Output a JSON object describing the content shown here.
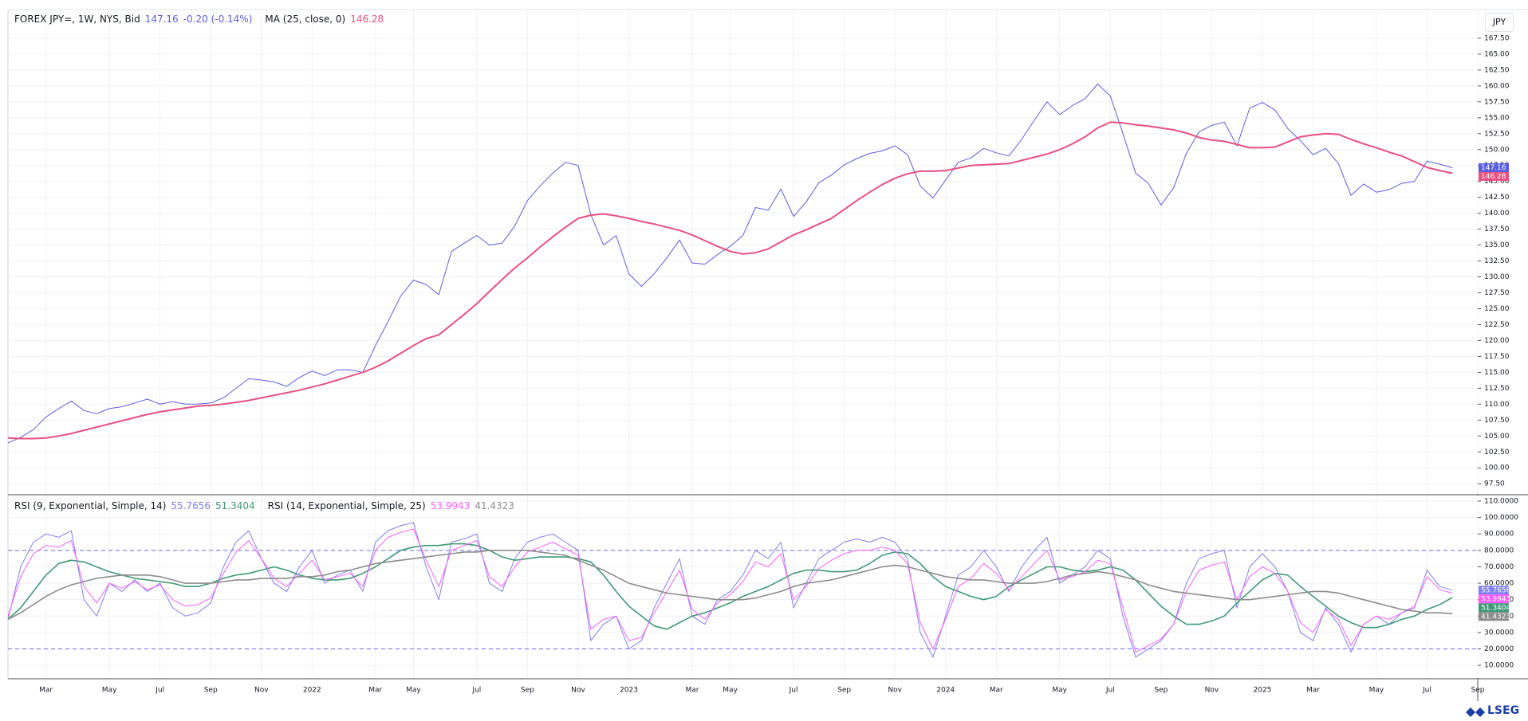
{
  "chart_data": [
    {
      "type": "line",
      "currency": "JPY",
      "change": "-0.20 (-0.14%)",
      "grid": true,
      "ylim": [
        95.9,
        172.0
      ],
      "yticks": [
        {
          "value": 97.5,
          "label": "97.50"
        },
        {
          "value": 100,
          "label": "100.00"
        },
        {
          "value": 102.5,
          "label": "102.50"
        },
        {
          "value": 105,
          "label": "105.00"
        },
        {
          "value": 107.5,
          "label": "107.50"
        },
        {
          "value": 110,
          "label": "110.00"
        },
        {
          "value": 112.5,
          "label": "112.50"
        },
        {
          "value": 115,
          "label": "115.00"
        },
        {
          "value": 117.5,
          "label": "117.50"
        },
        {
          "value": 120,
          "label": "120.00"
        },
        {
          "value": 122.5,
          "label": "122.50"
        },
        {
          "value": 125,
          "label": "125.00"
        },
        {
          "value": 127.5,
          "label": "127.50"
        },
        {
          "value": 130,
          "label": "130.00"
        },
        {
          "value": 132.5,
          "label": "132.50"
        },
        {
          "value": 135,
          "label": "135.00"
        },
        {
          "value": 137.5,
          "label": "137.50"
        },
        {
          "value": 140,
          "label": "140.00"
        },
        {
          "value": 142.5,
          "label": "142.50"
        },
        {
          "value": 145,
          "label": "145.00"
        },
        {
          "value": 147.5,
          "label": "147.50"
        },
        {
          "value": 150,
          "label": "150.00"
        },
        {
          "value": 152.5,
          "label": "152.50"
        },
        {
          "value": 155,
          "label": "155.00"
        },
        {
          "value": 157.5,
          "label": "157.50"
        },
        {
          "value": 160,
          "label": "160.00"
        },
        {
          "value": 162.5,
          "label": "162.50"
        },
        {
          "value": 165,
          "label": "165.00"
        },
        {
          "value": 167.5,
          "label": "167.50"
        }
      ],
      "series": [
        {
          "name": "FOREX JPY=, 1W, NYS, Bid",
          "color": "#5b5ce6",
          "values": [
            103.9,
            104.8,
            106.0,
            108.0,
            109.3,
            110.5,
            109.0,
            108.5,
            109.3,
            109.6,
            110.2,
            110.8,
            110.0,
            110.4,
            110.0,
            110.0,
            110.2,
            111.0,
            112.5,
            114.0,
            113.8,
            113.5,
            112.8,
            114.2,
            115.2,
            114.5,
            115.4,
            115.4,
            115.0,
            119.2,
            123.0,
            127.0,
            129.5,
            128.8,
            127.2,
            134.0,
            135.3,
            136.5,
            135.0,
            135.3,
            138.0,
            142.0,
            144.3,
            146.3,
            148.0,
            147.5,
            139.8,
            135.0,
            136.5,
            130.5,
            128.5,
            130.5,
            133.0,
            135.8,
            132.2,
            132.0,
            133.5,
            134.8,
            136.5,
            140.9,
            140.5,
            143.8,
            139.5,
            141.8,
            144.8,
            146.0,
            147.6,
            148.6,
            149.4,
            149.8,
            150.6,
            149.2,
            144.3,
            142.4,
            145.2,
            148.0,
            148.7,
            150.2,
            149.5,
            149.0,
            151.6,
            154.6,
            157.5,
            155.5,
            156.9,
            158.0,
            160.3,
            158.4,
            152.5,
            146.3,
            144.7,
            141.3,
            144.0,
            149.4,
            152.8,
            153.8,
            154.3,
            150.6,
            156.5,
            157.4,
            156.2,
            153.3,
            151.4,
            149.2,
            150.2,
            147.8,
            142.8,
            144.6,
            143.3,
            143.7,
            144.7,
            145.0,
            148.2,
            147.7,
            147.16,
            null,
            null
          ]
        },
        {
          "name": "MA (25, close, 0)",
          "color": "#e9507f",
          "values": [
            104.7,
            104.6,
            104.6,
            104.7,
            105.0,
            105.4,
            105.9,
            106.4,
            106.9,
            107.4,
            107.9,
            108.4,
            108.8,
            109.1,
            109.4,
            109.7,
            109.8,
            110.0,
            110.3,
            110.6,
            111.0,
            111.4,
            111.8,
            112.2,
            112.7,
            113.2,
            113.8,
            114.4,
            115.0,
            115.8,
            116.8,
            118.0,
            119.2,
            120.3,
            120.9,
            122.5,
            124.1,
            125.8,
            127.7,
            129.6,
            131.4,
            133.0,
            134.7,
            136.3,
            137.8,
            139.2,
            139.7,
            139.9,
            139.6,
            139.2,
            138.7,
            138.3,
            137.8,
            137.3,
            136.6,
            135.7,
            134.8,
            134.0,
            133.6,
            133.8,
            134.4,
            135.5,
            136.6,
            137.4,
            138.3,
            139.2,
            140.6,
            142.0,
            143.3,
            144.5,
            145.5,
            146.2,
            146.6,
            146.6,
            146.7,
            147.1,
            147.5,
            147.6,
            147.7,
            147.8,
            148.3,
            148.8,
            149.3,
            150.0,
            150.9,
            152.0,
            153.4,
            154.3,
            154.2,
            153.9,
            153.7,
            153.4,
            153.1,
            152.6,
            151.9,
            151.5,
            151.3,
            150.8,
            150.3,
            150.3,
            150.4,
            151.2,
            152.0,
            152.3,
            152.5,
            152.4,
            151.6,
            150.9,
            150.3,
            149.6,
            149.0,
            148.1,
            147.2,
            146.7,
            146.28,
            null,
            null
          ]
        }
      ]
    },
    {
      "type": "line",
      "grid": true,
      "hlines": [
        80,
        20
      ],
      "ylim": [
        2.3,
        113.4
      ],
      "yticks": [
        {
          "value": 10,
          "label": "10.0000"
        },
        {
          "value": 20,
          "label": "20.0000"
        },
        {
          "value": 30,
          "label": "30.0000"
        },
        {
          "value": 40,
          "label": "40.0000"
        },
        {
          "value": 50,
          "label": "50.0000"
        },
        {
          "value": 60,
          "label": "60.0000"
        },
        {
          "value": 70,
          "label": "70.0000"
        },
        {
          "value": 80,
          "label": "80.0000"
        },
        {
          "value": 90,
          "label": "90.0000"
        },
        {
          "value": 100,
          "label": "100.0000"
        },
        {
          "value": 110,
          "label": "110.0000"
        }
      ],
      "categories": [
        null,
        null,
        null,
        "Mar",
        null,
        null,
        null,
        null,
        "May",
        null,
        null,
        null,
        "Jul",
        null,
        null,
        null,
        "Sep",
        null,
        null,
        null,
        "Nov",
        null,
        null,
        null,
        "2022",
        null,
        null,
        null,
        null,
        "Mar",
        null,
        null,
        "May",
        null,
        null,
        null,
        null,
        "Jul",
        null,
        null,
        null,
        "Sep",
        null,
        null,
        null,
        "Nov",
        null,
        null,
        null,
        "2023",
        null,
        null,
        null,
        null,
        "Mar",
        null,
        null,
        "May",
        null,
        null,
        null,
        null,
        "Jul",
        null,
        null,
        null,
        "Sep",
        null,
        null,
        null,
        "Nov",
        null,
        null,
        null,
        "2024",
        null,
        null,
        null,
        "Mar",
        null,
        null,
        null,
        null,
        "May",
        null,
        null,
        null,
        "Jul",
        null,
        null,
        null,
        "Sep",
        null,
        null,
        null,
        "Nov",
        null,
        null,
        null,
        "2025",
        null,
        null,
        null,
        "Mar",
        null,
        null,
        null,
        null,
        "May",
        null,
        null,
        null,
        "Jul",
        null,
        null,
        null,
        "Sep"
      ],
      "series": [
        {
          "name": "RSI (9, Exponential, Simple, 14)",
          "color": "#7f7ff2",
          "values": [
            38,
            70,
            85,
            90,
            88,
            92,
            50,
            40,
            60,
            55,
            62,
            55,
            60,
            45,
            40,
            42,
            48,
            70,
            85,
            92,
            75,
            60,
            55,
            70,
            80,
            60,
            65,
            68,
            55,
            85,
            92,
            95,
            97,
            70,
            50,
            85,
            87,
            90,
            60,
            55,
            75,
            85,
            88,
            90,
            85,
            80,
            25,
            35,
            40,
            20,
            25,
            45,
            60,
            75,
            40,
            35,
            50,
            55,
            65,
            80,
            75,
            85,
            45,
            60,
            75,
            80,
            85,
            87,
            85,
            88,
            85,
            75,
            30,
            15,
            40,
            65,
            70,
            80,
            70,
            55,
            70,
            80,
            88,
            60,
            65,
            70,
            80,
            75,
            40,
            15,
            20,
            25,
            35,
            60,
            75,
            78,
            80,
            45,
            70,
            78,
            70,
            55,
            30,
            25,
            45,
            35,
            18,
            35,
            40,
            35,
            42,
            45,
            68,
            58,
            55.7656,
            null,
            null
          ]
        },
        {
          "color": "#3f9a75",
          "values": [
            38,
            45,
            55,
            65,
            72,
            74,
            73,
            70,
            67,
            65,
            63,
            62,
            61,
            60,
            58,
            58,
            60,
            63,
            65,
            66,
            68,
            70,
            68,
            65,
            63,
            62,
            62,
            63,
            66,
            70,
            75,
            80,
            82,
            83,
            83,
            84,
            84,
            83,
            80,
            76,
            74,
            75,
            76,
            76,
            76,
            75,
            73,
            65,
            55,
            46,
            40,
            34,
            32,
            36,
            40,
            42,
            45,
            48,
            52,
            55,
            58,
            62,
            66,
            68,
            68,
            67,
            67,
            68,
            72,
            77,
            79,
            78,
            72,
            64,
            58,
            55,
            52,
            50,
            52,
            58,
            62,
            66,
            70,
            70,
            68,
            67,
            68,
            70,
            68,
            62,
            54,
            46,
            40,
            35,
            35,
            37,
            40,
            48,
            55,
            62,
            66,
            65,
            58,
            52,
            46,
            40,
            36,
            33,
            33,
            35,
            38,
            40,
            44,
            47,
            51.3404,
            null,
            null
          ]
        },
        {
          "name": "RSI (14, Exponential, Simple, 25)",
          "color": "#ff5cff",
          "values": [
            40,
            64,
            78,
            83,
            82,
            86,
            58,
            48,
            60,
            57,
            61,
            56,
            59,
            50,
            46,
            47,
            51,
            66,
            79,
            86,
            75,
            63,
            58,
            66,
            74,
            62,
            64,
            66,
            58,
            80,
            88,
            91,
            93,
            74,
            58,
            80,
            83,
            86,
            64,
            58,
            70,
            79,
            82,
            85,
            81,
            77,
            32,
            38,
            40,
            25,
            27,
            42,
            55,
            68,
            44,
            38,
            48,
            53,
            61,
            73,
            70,
            78,
            50,
            58,
            69,
            74,
            78,
            80,
            80,
            82,
            80,
            72,
            36,
            20,
            38,
            58,
            63,
            72,
            66,
            56,
            64,
            72,
            80,
            62,
            64,
            67,
            74,
            72,
            45,
            18,
            22,
            26,
            35,
            55,
            68,
            71,
            73,
            50,
            64,
            70,
            66,
            55,
            36,
            30,
            44,
            38,
            22,
            35,
            40,
            38,
            42,
            46,
            64,
            56,
            53.9943,
            null,
            null
          ]
        },
        {
          "color": "#8c8c8c",
          "values": [
            38,
            42,
            47,
            52,
            56,
            59,
            61,
            63,
            64,
            65,
            65,
            65,
            64,
            62,
            60,
            60,
            60,
            61,
            62,
            62,
            63,
            63,
            63,
            64,
            64,
            65,
            67,
            68,
            70,
            72,
            73,
            74,
            75,
            76,
            77,
            78,
            79,
            79,
            80,
            80,
            80,
            80,
            79,
            78,
            77,
            74,
            71,
            68,
            64,
            60,
            58,
            56,
            54,
            53,
            52,
            51,
            50,
            50,
            50,
            51,
            53,
            55,
            58,
            60,
            61,
            62,
            64,
            66,
            68,
            70,
            71,
            70,
            68,
            66,
            64,
            63,
            62,
            62,
            61,
            60,
            60,
            60,
            61,
            63,
            65,
            66,
            67,
            66,
            64,
            62,
            59,
            57,
            55,
            54,
            53,
            52,
            51,
            50,
            50,
            51,
            52,
            53,
            54,
            55,
            55,
            54,
            52,
            50,
            48,
            46,
            44,
            43,
            42,
            42,
            41.4323,
            null,
            null
          ]
        }
      ]
    }
  ],
  "logo": "LSEG"
}
